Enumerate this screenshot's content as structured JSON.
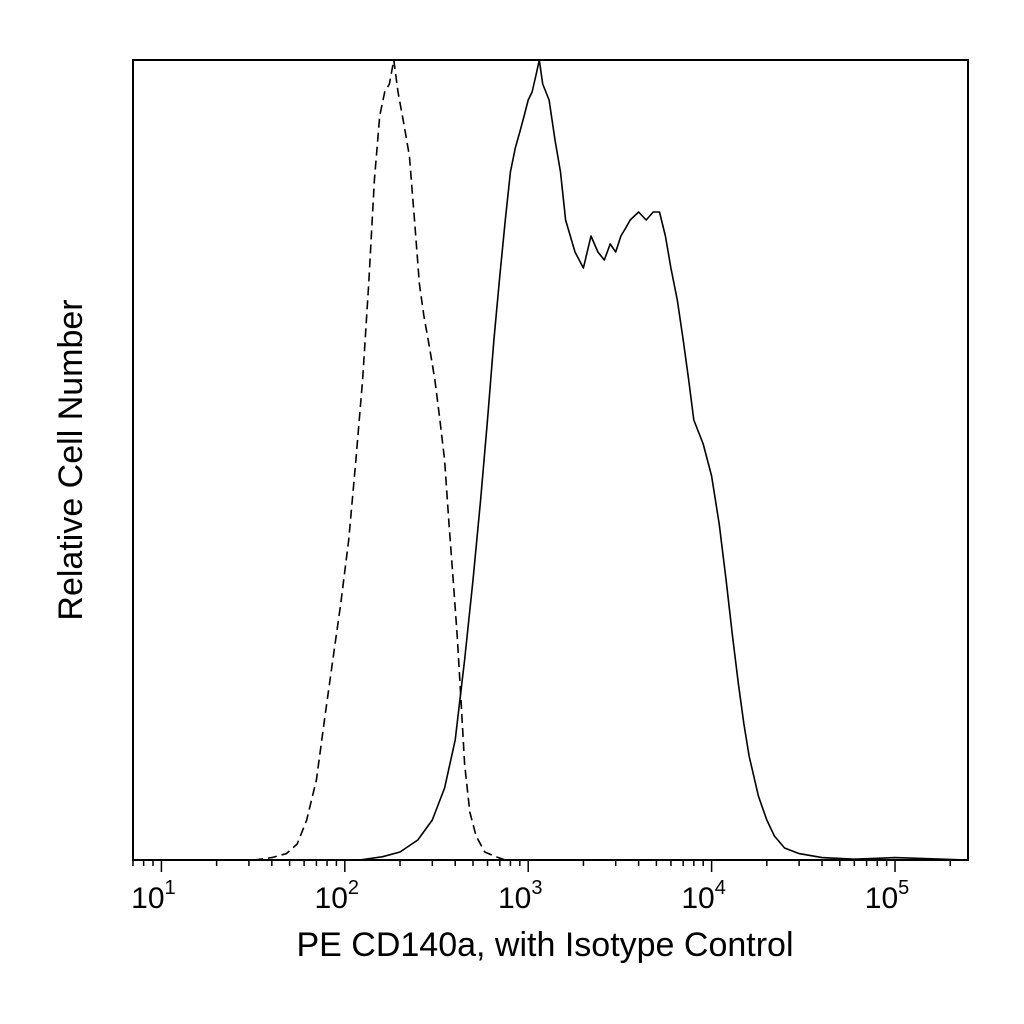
{
  "chart_data": {
    "type": "line",
    "title": "",
    "xlabel": "PE CD140a, with Isotype Control",
    "ylabel": "Relative Cell Number",
    "x_scale": "log",
    "xlim": [
      7,
      250000
    ],
    "ylim": [
      0,
      100
    ],
    "x_ticks": [
      {
        "value": 10,
        "base": "10",
        "exp": "1"
      },
      {
        "value": 100,
        "base": "10",
        "exp": "2"
      },
      {
        "value": 1000,
        "base": "10",
        "exp": "3"
      },
      {
        "value": 10000,
        "base": "10",
        "exp": "4"
      },
      {
        "value": 100000,
        "base": "10",
        "exp": "5"
      }
    ],
    "grid": false,
    "legend": "none",
    "series": [
      {
        "style": "dashed",
        "color": "#000000",
        "x": [
          32,
          40,
          48,
          55,
          62,
          70,
          78,
          86,
          95,
          105,
          115,
          125,
          135,
          145,
          155,
          165,
          175,
          185,
          195,
          210,
          225,
          240,
          255,
          270,
          290,
          310,
          330,
          350,
          370,
          390,
          410,
          430,
          450,
          480,
          520,
          580,
          650,
          750
        ],
        "y": [
          0,
          0.3,
          0.8,
          2,
          5,
          10,
          18,
          25,
          32,
          40,
          50,
          60,
          72,
          85,
          93,
          96,
          97,
          100,
          96,
          92,
          88,
          80,
          72,
          68,
          64,
          60,
          55,
          50,
          42,
          35,
          28,
          20,
          12,
          6,
          3,
          1,
          0.5,
          0
        ]
      },
      {
        "style": "solid",
        "color": "#000000",
        "x": [
          120,
          160,
          200,
          250,
          300,
          350,
          400,
          450,
          500,
          550,
          600,
          650,
          700,
          750,
          800,
          850,
          900,
          950,
          1000,
          1050,
          1100,
          1150,
          1200,
          1300,
          1400,
          1500,
          1600,
          1800,
          2000,
          2200,
          2400,
          2600,
          2800,
          3000,
          3200,
          3400,
          3600,
          4000,
          4400,
          4800,
          5200,
          5600,
          6000,
          6500,
          7000,
          7500,
          8000,
          9000,
          10000,
          11000,
          12000,
          13000,
          14000,
          15000,
          16000,
          18000,
          20000,
          22000,
          25000,
          30000,
          40000,
          60000,
          100000,
          250000
        ],
        "y": [
          0,
          0.4,
          1,
          2.5,
          5,
          9,
          15,
          25,
          35,
          45,
          55,
          65,
          73,
          80,
          86,
          89,
          91,
          93,
          95,
          96,
          98,
          100,
          97,
          95,
          90,
          86,
          80,
          76,
          74,
          78,
          76,
          75,
          77,
          76,
          78,
          79,
          80,
          81,
          80,
          81,
          81,
          78,
          74,
          70,
          65,
          60,
          55,
          52,
          48,
          42,
          35,
          28,
          22,
          17,
          13,
          8,
          5,
          3,
          1.5,
          0.8,
          0.3,
          0.1,
          0.3,
          0
        ]
      }
    ]
  }
}
